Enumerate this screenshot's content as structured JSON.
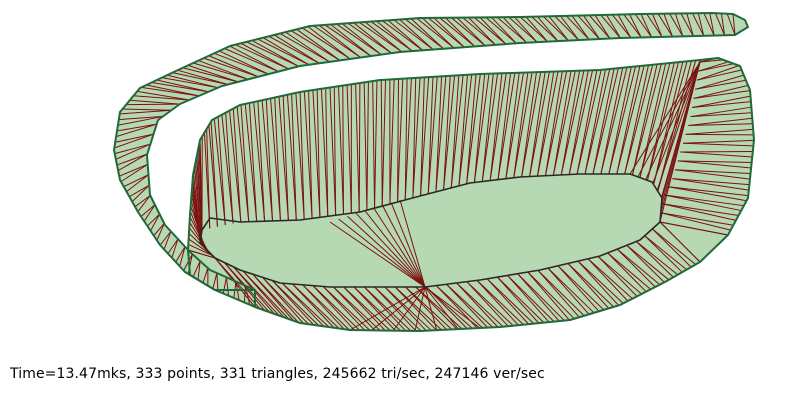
{
  "colors": {
    "background": "#ffffff",
    "fill": "#b6d9b4",
    "outline": "#1f6a3a",
    "edge": "#7a1010",
    "hole": "#2a2a22"
  },
  "status": {
    "text": "Time=13.47mks, 333 points, 331 triangles, 245662 tri/sec, 247146 ver/sec"
  }
}
